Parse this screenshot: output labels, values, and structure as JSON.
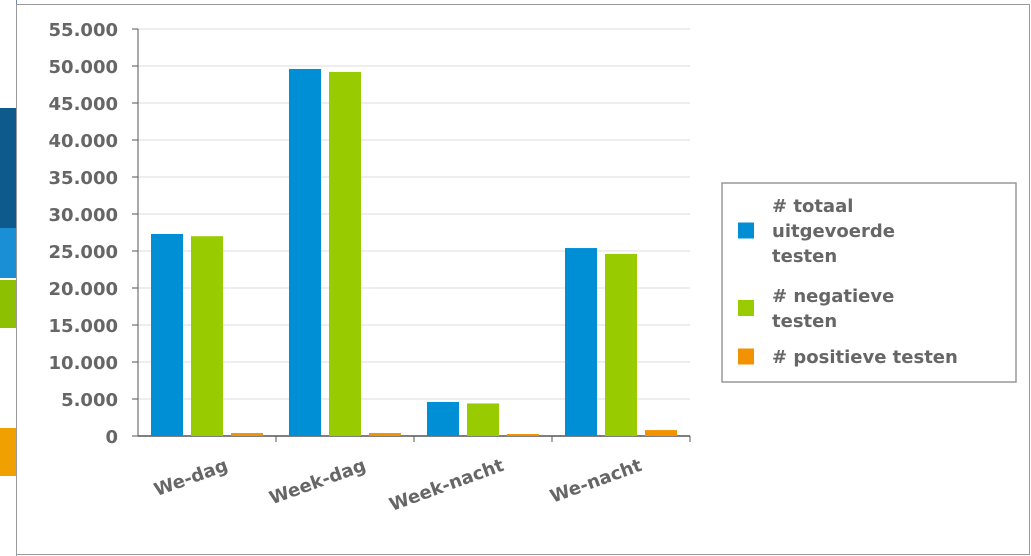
{
  "colors": {
    "series_blue": "#008fd5",
    "series_green": "#99cc00",
    "series_orange": "#f39200",
    "axis_text": "#666666",
    "grid": "#dddddd",
    "legend_border": "#999999"
  },
  "chart_data": {
    "type": "bar",
    "categories": [
      "We-dag",
      "Week-dag",
      "Week-nacht",
      "We-nacht"
    ],
    "series": [
      {
        "name": "# totaal uitgevoerde testen",
        "values": [
          27300,
          49600,
          4600,
          25400
        ]
      },
      {
        "name": "# negatieve testen",
        "values": [
          27000,
          49200,
          4400,
          24600
        ]
      },
      {
        "name": "# positieve testen",
        "values": [
          400,
          400,
          150,
          800
        ]
      }
    ],
    "legend_lines": [
      [
        "# totaal",
        "uitgevoerde",
        "testen"
      ],
      [
        "# negatieve",
        "testen"
      ],
      [
        "# positieve testen"
      ]
    ],
    "yticks": [
      "0",
      "5.000",
      "10.000",
      "15.000",
      "20.000",
      "25.000",
      "30.000",
      "35.000",
      "40.000",
      "45.000",
      "50.000",
      "55.000"
    ],
    "ylim": [
      0,
      55000
    ],
    "grid": true,
    "legend_position": "right"
  }
}
